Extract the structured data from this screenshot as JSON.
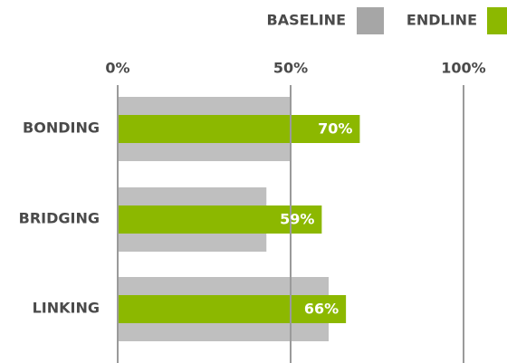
{
  "chart_data": {
    "type": "hbar",
    "categories": [
      "BONDING",
      "BRIDGING",
      "LINKING"
    ],
    "series": [
      {
        "name": "BASELINE",
        "color": "#bfbfbf",
        "values": [
          50,
          43,
          61
        ]
      },
      {
        "name": "ENDLINE",
        "color": "#8cb800",
        "values": [
          70,
          59,
          66
        ],
        "value_labels": [
          "70%",
          "59%",
          "66%"
        ]
      }
    ],
    "xlim": [
      0,
      100
    ],
    "xticks": [
      {
        "value": 0,
        "label": "0%"
      },
      {
        "value": 50,
        "label": "50%"
      },
      {
        "value": 100,
        "label": "100%"
      }
    ],
    "grid": true
  }
}
